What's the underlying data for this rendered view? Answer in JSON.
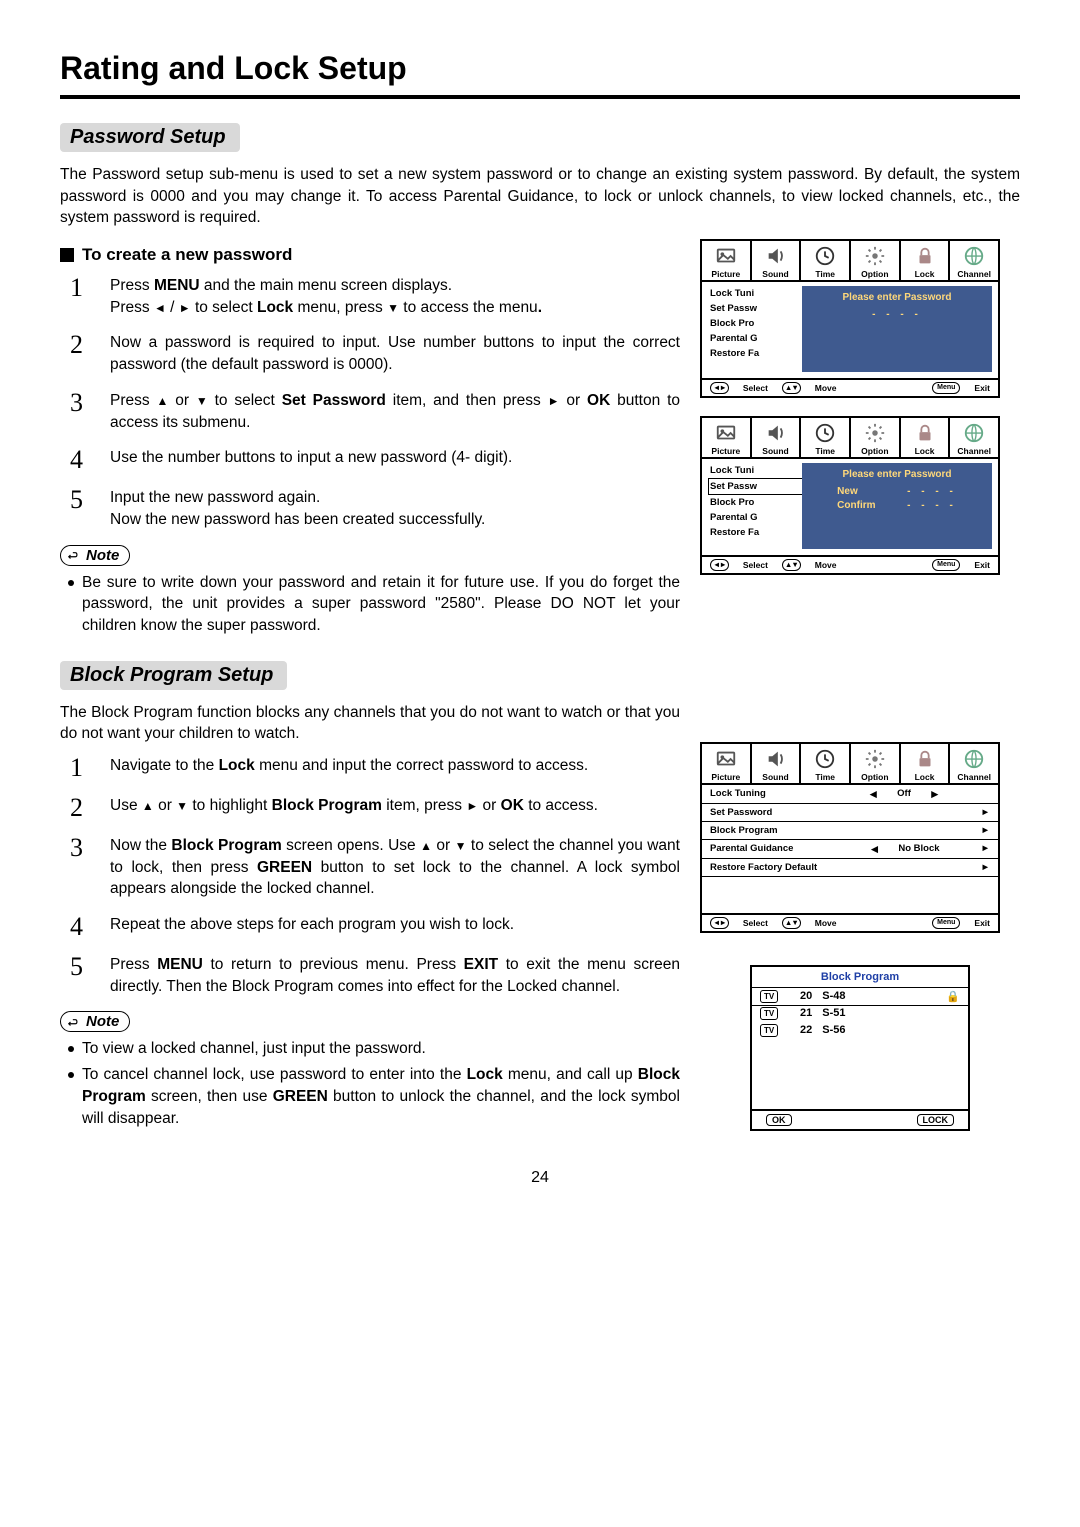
{
  "page_title": "Rating and Lock Setup",
  "page_number": "24",
  "password_section": {
    "heading": "Password Setup",
    "intro": "The Password setup sub-menu is used to set a new system password or to change an existing system password. By default, the system password is 0000 and you may change it. To access Parental Guidance, to lock or unlock channels, to view locked channels, etc., the system password is required.",
    "subheading": "To create a new password",
    "steps": [
      "Press <b>MENU</b> and the main menu screen displays.<br>Press <span class='arrow'>◄</span> / <span class='arrow'>►</span> to select <b>Lock</b> menu, press <span class='arrow'>▼</span> to access the menu<b>.</b>",
      "Now a password is required to input. Use number buttons to input the correct password (the default password is 0000).",
      "Press <span class='arrow'>▲</span> or <span class='arrow'>▼</span> to select <b>Set Password</b> item, and then press <span class='arrow'>►</span> or <b>OK</b> button to access its submenu.",
      "Use the number buttons to input a new password (4- digit).",
      "Input the new password again.<br>Now the new password has been created successfully."
    ],
    "note_label": "Note",
    "notes": [
      "Be sure to write down your password and retain it for future use. If you do forget the password, the unit provides a super password \"2580\". Please DO NOT let your children know the super password."
    ]
  },
  "block_section": {
    "heading": "Block Program Setup",
    "intro": "The Block Program function blocks any channels that you do not want to watch or that you do not want your children to watch.",
    "steps": [
      "Navigate to the <b>Lock</b> menu and input the correct password to access.",
      "Use <span class='arrow'>▲</span> or <span class='arrow'>▼</span> to highlight <b>Block Program</b> item, press <span class='arrow'>►</span> or <b>OK</b> to access.",
      "Now the <b>Block Program</b> screen opens. Use <span class='arrow'>▲</span> or <span class='arrow'>▼</span> to select the channel you want to lock, then press <b>GREEN</b> button to set lock to the channel. A lock symbol appears alongside the locked channel.",
      "Repeat the above steps for each program you wish to lock.",
      "Press <b>MENU</b> to return to previous menu. Press <b>EXIT</b> to exit the menu screen directly. Then the Block Program comes into effect for the Locked channel."
    ],
    "note_label": "Note",
    "notes": [
      "To view a locked channel, just input the password.",
      "To cancel channel lock, use password to enter into the <b>Lock</b> menu, and call up <b>Block Program</b> screen, then use <b>GREEN</b> button to unlock the channel, and the lock symbol will disappear."
    ]
  },
  "osd_tabs": [
    "Picture",
    "Sound",
    "Time",
    "Option",
    "Lock",
    "Channel"
  ],
  "osd_menu_items": [
    "Lock Tuning",
    "Set Password",
    "Block Program",
    "Parental Guidance",
    "Restore Factory Default"
  ],
  "osd_menu_items_short": [
    "Lock Tuni",
    "Set Passw",
    "Block Pro",
    "Parental G",
    "Restore Fa"
  ],
  "osd_popup_title": "Please enter Password",
  "osd_popup_dots": "- - - -",
  "osd_popup_new": "New",
  "osd_popup_confirm": "Confirm",
  "osd_footer": {
    "select": "Select",
    "move": "Move",
    "menu": "Menu",
    "exit": "Exit"
  },
  "lock_menu": {
    "rows": [
      {
        "label": "Lock Tuning",
        "mid_left": "◄",
        "mid": "Off",
        "mid_right": "►",
        "arrow": ""
      },
      {
        "label": "Set Password",
        "mid_left": "",
        "mid": "",
        "mid_right": "",
        "arrow": "►"
      },
      {
        "label": "Block Program",
        "mid_left": "",
        "mid": "",
        "mid_right": "",
        "arrow": "►",
        "hl": true
      },
      {
        "label": "Parental Guidance",
        "mid_left": "◄",
        "mid": "No Block",
        "mid_right": "",
        "arrow": "►"
      },
      {
        "label": "Restore Factory Default",
        "mid_left": "",
        "mid": "",
        "mid_right": "",
        "arrow": "►"
      }
    ]
  },
  "block_panel": {
    "title": "Block Program",
    "rows": [
      {
        "tv": "TV",
        "num": "20",
        "name": "S-48",
        "lock": true,
        "hl": true
      },
      {
        "tv": "TV",
        "num": "21",
        "name": "S-51",
        "lock": false
      },
      {
        "tv": "TV",
        "num": "22",
        "name": "S-56",
        "lock": false
      }
    ],
    "footer": {
      "ok": "OK",
      "lock": "LOCK"
    }
  },
  "colors": {
    "popup_bg": "#3f5a8f",
    "popup_accent": "#ffd87a",
    "bp_title": "#1e3fa6",
    "lock_icon": "#d99a00",
    "section_bg": "#d9d9d9"
  }
}
